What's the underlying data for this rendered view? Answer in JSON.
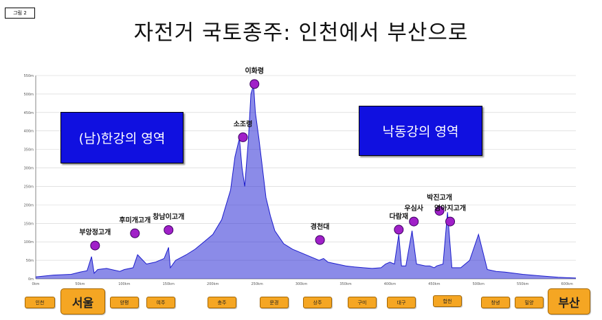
{
  "figure_tag": "그림 2",
  "title": "자전거 국토종주: 인천에서 부산으로",
  "regions": {
    "left": "(남)한강의 영역",
    "right": "낙동강의 영역"
  },
  "cities": [
    {
      "label": "인천",
      "size": "small"
    },
    {
      "label": "서울",
      "size": "large"
    },
    {
      "label": "양평",
      "size": "small"
    },
    {
      "label": "여주",
      "size": "small"
    },
    {
      "label": "충주",
      "size": "small"
    },
    {
      "label": "문경",
      "size": "small"
    },
    {
      "label": "상주",
      "size": "small"
    },
    {
      "label": "구미",
      "size": "small"
    },
    {
      "label": "대구",
      "size": "small"
    },
    {
      "label": "합천",
      "size": "small"
    },
    {
      "label": "창녕",
      "size": "small"
    },
    {
      "label": "밀양",
      "size": "small"
    },
    {
      "label": "부산",
      "size": "large"
    }
  ],
  "colors": {
    "profile_line": "#1a1acc",
    "profile_fill": "#2b2bd6",
    "peak_marker": "#a020c8",
    "region_box": "#1010e0",
    "city_box": "#f5a623",
    "grid": "#d0d0d0"
  },
  "chart_data": {
    "type": "area",
    "title": "자전거 국토종주: 인천에서 부산으로",
    "xlabel": "",
    "ylabel": "",
    "xlim": [
      0,
      610
    ],
    "ylim": [
      0,
      550
    ],
    "grid": true,
    "x_ticks": [
      "0km",
      "50km",
      "100km",
      "150km",
      "200km",
      "250km",
      "300km",
      "350km",
      "400km",
      "450km",
      "500km",
      "550km",
      "600km"
    ],
    "y_ticks": [
      "0m",
      "50m",
      "100m",
      "150m",
      "200m",
      "250m",
      "300m",
      "350m",
      "400m",
      "450m",
      "500m",
      "550m"
    ],
    "profile": {
      "x": [
        0,
        20,
        40,
        50,
        58,
        63,
        66,
        70,
        80,
        95,
        100,
        110,
        115,
        125,
        135,
        145,
        150,
        152,
        158,
        170,
        180,
        190,
        200,
        210,
        215,
        220,
        225,
        230,
        233,
        236,
        240,
        243,
        246,
        248,
        252,
        256,
        260,
        265,
        270,
        280,
        290,
        300,
        310,
        320,
        325,
        330,
        340,
        350,
        360,
        370,
        380,
        390,
        395,
        400,
        405,
        410,
        413,
        418,
        425,
        430,
        440,
        445,
        450,
        453,
        460,
        465,
        470,
        480,
        490,
        500,
        510,
        520,
        530,
        540,
        550,
        560,
        570,
        580,
        590,
        600,
        610
      ],
      "y": [
        5,
        10,
        12,
        18,
        22,
        60,
        15,
        25,
        28,
        20,
        25,
        30,
        65,
        40,
        45,
        55,
        85,
        30,
        50,
        65,
        80,
        100,
        120,
        160,
        200,
        240,
        330,
        380,
        300,
        250,
        370,
        500,
        525,
        450,
        380,
        300,
        220,
        170,
        130,
        95,
        80,
        70,
        60,
        50,
        55,
        45,
        40,
        35,
        32,
        30,
        28,
        30,
        40,
        45,
        40,
        120,
        35,
        35,
        130,
        40,
        35,
        35,
        30,
        35,
        40,
        180,
        30,
        30,
        50,
        120,
        25,
        20,
        18,
        15,
        12,
        10,
        8,
        6,
        4,
        3,
        2
      ]
    },
    "annotations": [
      {
        "label": "부앙정고개",
        "x": 67,
        "y": 90
      },
      {
        "label": "후미개고개",
        "x": 112,
        "y": 123
      },
      {
        "label": "창남이고개",
        "x": 150,
        "y": 132
      },
      {
        "label": "소조령",
        "x": 234,
        "y": 383
      },
      {
        "label": "이화령",
        "x": 247,
        "y": 527
      },
      {
        "label": "경천대",
        "x": 321,
        "y": 105
      },
      {
        "label": "다람재",
        "x": 410,
        "y": 133
      },
      {
        "label": "우심사",
        "x": 427,
        "y": 155
      },
      {
        "label": "박진고개",
        "x": 456,
        "y": 184
      },
      {
        "label": "영아지고개",
        "x": 468,
        "y": 155
      }
    ]
  }
}
